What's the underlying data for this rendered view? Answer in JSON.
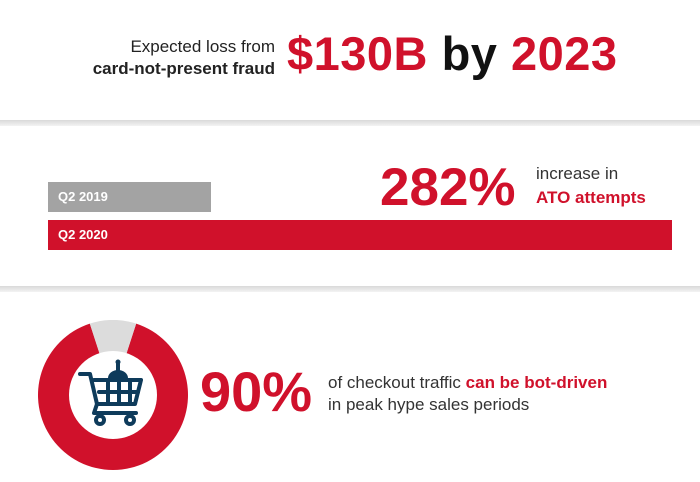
{
  "section1": {
    "line1": "Expected loss from",
    "line2": "card-not-present fraud",
    "amount": "$130B",
    "by": "by",
    "year": "2023"
  },
  "section2": {
    "percent": "282%",
    "text_plain": "increase in",
    "text_highlight": "ATO attempts"
  },
  "section3": {
    "percent": "90%",
    "line1_plain": "of checkout traffic",
    "line1_highlight": "can be bot-driven",
    "line2": "in peak hype sales periods"
  },
  "colors": {
    "red": "#d0112b",
    "gray": "#a3a3a3",
    "light_gray": "#dcdcdc"
  },
  "icons": {
    "cart": "shopping-cart-bot-icon"
  },
  "chart_data": [
    {
      "type": "bar",
      "orientation": "horizontal",
      "categories": [
        "Q2 2019",
        "Q2 2020"
      ],
      "values": [
        1,
        3.82
      ],
      "colors": [
        "#a3a3a3",
        "#d0112b"
      ]
    },
    {
      "type": "pie",
      "donut": true,
      "labels": [
        "",
        ""
      ],
      "values": [
        90,
        10
      ],
      "colors": [
        "#d0112b",
        "#dcdcdc"
      ]
    }
  ]
}
